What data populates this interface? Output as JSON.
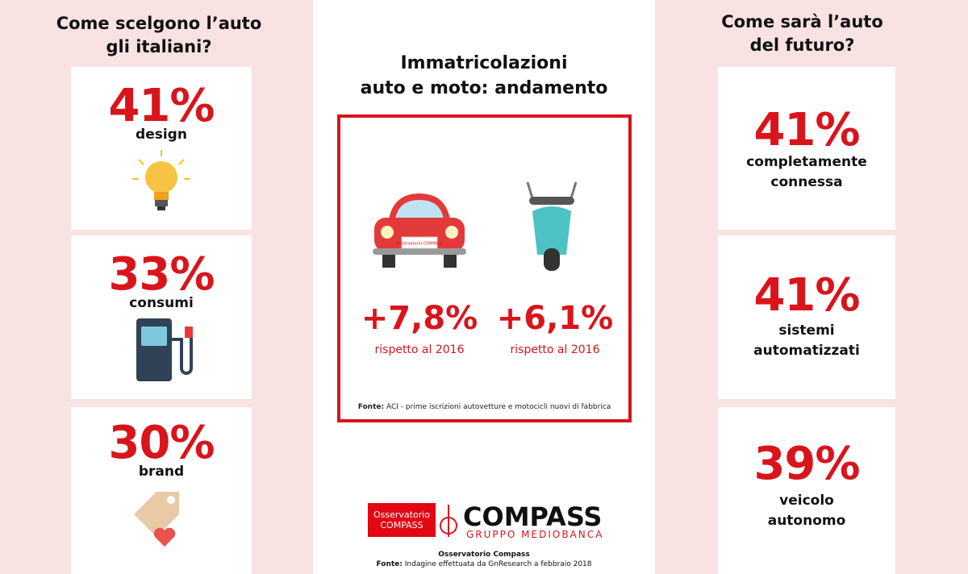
{
  "left": {
    "title_lines": [
      "Come scelgono l’auto",
      "gli italiani?"
    ],
    "cards": [
      {
        "value": "41%",
        "label_lines": [
          "design"
        ]
      },
      {
        "value": "33%",
        "label_lines": [
          "consumi"
        ]
      },
      {
        "value": "30%",
        "label_lines": [
          "brand"
        ]
      }
    ]
  },
  "center": {
    "title_lines": [
      "Immatricolazioni",
      "auto e moto: andamento"
    ],
    "plate": "Osservatorio COMPASS",
    "stats": [
      {
        "value": "+7,8%",
        "note": "rispetto al 2016"
      },
      {
        "value": "+6,1%",
        "note": "rispetto al 2016"
      }
    ],
    "source_label": "Fonte:",
    "source_text": "ACI - prime iscrizioni autovetture e motocicli nuovi di fabbrica",
    "logo": {
      "badge": "Osservatorio COMPASS",
      "name": "COMPASS",
      "group": "GRUPPO MEDIOBANCA"
    },
    "footer": {
      "title": "Osservatorio Compass",
      "source_label": "Fonte:",
      "source_text": "Indagine effettuata da GnResearch a febbraio 2018"
    }
  },
  "right": {
    "title_lines": [
      "Come sarà l’auto",
      "del futuro?"
    ],
    "cards": [
      {
        "value": "41%",
        "label_lines": [
          "completamente",
          "connessa"
        ]
      },
      {
        "value": "41%",
        "label_lines": [
          "sistemi",
          "automatizzati"
        ]
      },
      {
        "value": "39%",
        "label_lines": [
          "veicolo",
          "autonomo"
        ]
      }
    ]
  }
}
